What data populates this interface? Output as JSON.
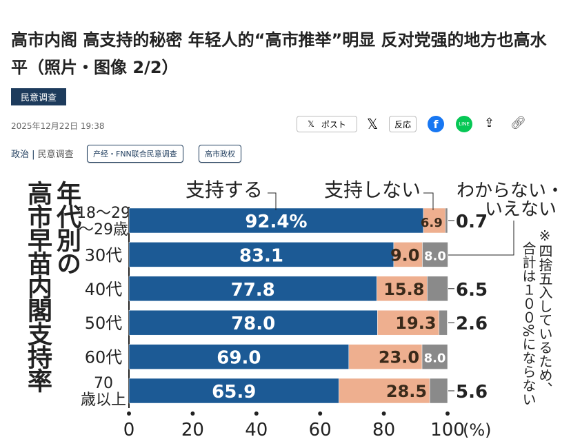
{
  "article": {
    "title": "高市内阁 高支持的秘密 年轻人的“高市推举”明显 反对党强的地方也高水平（照片・图像 2/2）",
    "badge": "民意调查",
    "date": "2025年12月22日 19:38",
    "share": {
      "post_label": "ポスト",
      "reaction_label": "反応"
    },
    "category": "政治",
    "subcategory": "民意调查",
    "tags": [
      "产经・FNN联合民意调查",
      "高市政权"
    ]
  },
  "chart_data": {
    "type": "bar",
    "stacked": true,
    "orientation": "horizontal",
    "title": "高市早苗内閣支持率",
    "subtitle": "年代別の",
    "categories": [
      "18〜29歳",
      "30代",
      "40代",
      "50代",
      "60代",
      "70歳以上"
    ],
    "series": [
      {
        "name": "支持する",
        "color": "#1c5a95",
        "values": [
          92.4,
          83.1,
          77.8,
          78.0,
          69.0,
          65.9
        ],
        "labels": [
          "92.4%",
          "83.1",
          "77.8",
          "78.0",
          "69.0",
          "65.9"
        ]
      },
      {
        "name": "支持しない",
        "color": "#eeaf8f",
        "values": [
          6.9,
          9.0,
          15.8,
          19.3,
          23.0,
          28.5
        ],
        "labels": [
          "6.9",
          "9.0",
          "15.8",
          "19.3",
          "23.0",
          "28.5"
        ]
      },
      {
        "name": "わからない・いえない",
        "color": "#8a8a8a",
        "values": [
          0.7,
          8.0,
          6.5,
          2.6,
          8.0,
          5.6
        ],
        "labels": [
          "0.7",
          "8.0",
          "6.5",
          "2.6",
          "8.0",
          "5.6"
        ]
      }
    ],
    "xlim": [
      0,
      100
    ],
    "xticks": [
      "0",
      "20",
      "40",
      "60",
      "80",
      "100"
    ],
    "xunit": "(%)",
    "note": [
      "※四捨五入しているため、",
      "合計は１００%にならない"
    ]
  }
}
